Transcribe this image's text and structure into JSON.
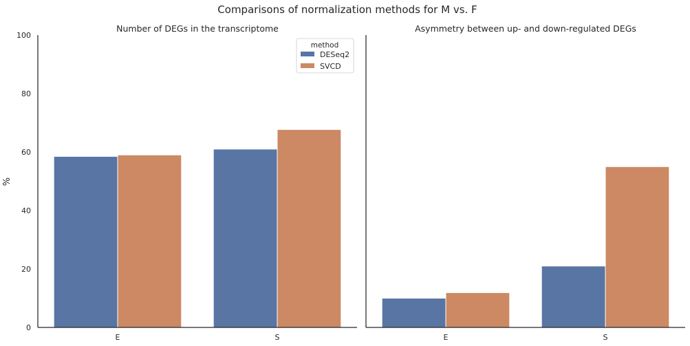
{
  "figure": {
    "suptitle": "Comparisons of normalization methods for M vs. F"
  },
  "chart_data": [
    {
      "type": "bar",
      "title": "Number of DEGs in the transcriptome",
      "xlabel": "",
      "ylabel": "%",
      "categories": [
        "E",
        "S"
      ],
      "series": [
        {
          "name": "DESeq2",
          "values": [
            58.5,
            61.0
          ],
          "color": "#5875a4"
        },
        {
          "name": "SVCD",
          "values": [
            59.0,
            67.7
          ],
          "color": "#cc8963"
        }
      ],
      "ylim": [
        0,
        100
      ],
      "yticks": [
        0,
        20,
        40,
        60,
        80,
        100
      ],
      "legend": {
        "title": "method",
        "position": "top-right"
      },
      "grid": false
    },
    {
      "type": "bar",
      "title": "Asymmetry between up- and down-regulated DEGs",
      "xlabel": "",
      "ylabel": "",
      "categories": [
        "E",
        "S"
      ],
      "series": [
        {
          "name": "DESeq2",
          "values": [
            10.0,
            21.0
          ],
          "color": "#5875a4"
        },
        {
          "name": "SVCD",
          "values": [
            11.9,
            55.0
          ],
          "color": "#cc8963"
        }
      ],
      "ylim": [
        0,
        100
      ],
      "sharey": true,
      "grid": false
    }
  ]
}
